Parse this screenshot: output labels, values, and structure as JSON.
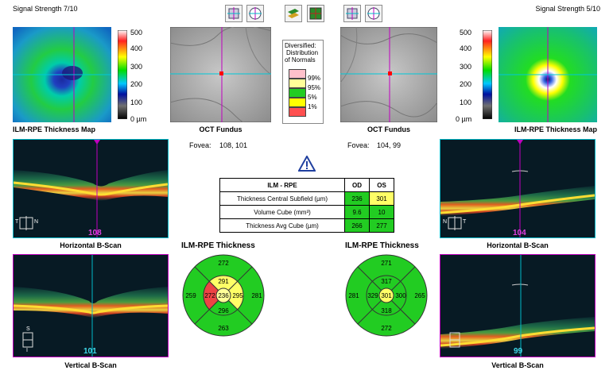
{
  "header": {
    "left_signal": "Signal Strength 7/10",
    "right_signal": "Signal Strength 5/10"
  },
  "toolbar": [
    {
      "name": "crosshair-left-icon"
    },
    {
      "name": "target-left-icon"
    },
    {
      "name": "layer-view-icon"
    },
    {
      "name": "grid-view-icon"
    },
    {
      "name": "crosshair-right-icon"
    },
    {
      "name": "target-right-icon"
    }
  ],
  "scale": {
    "labels": [
      "500",
      "400",
      "300",
      "200",
      "100",
      "0 µm"
    ]
  },
  "od": {
    "map_caption": "ILM-RPE Thickness Map",
    "fundus_caption": "OCT Fundus",
    "fovea_label": "Fovea:",
    "fovea_value": "108, 101",
    "hscan_caption": "Horizontal B-Scan",
    "hscan_index": "108",
    "vscan_caption": "Vertical B-Scan",
    "vscan_index": "101",
    "grid_title": "ILM-RPE Thickness",
    "grid": {
      "outer_top": "272",
      "outer_left": "259",
      "outer_right": "281",
      "outer_bottom": "263",
      "inner_top": "291",
      "inner_left": "272",
      "inner_right": "295",
      "inner_bottom": "296",
      "center": "236"
    },
    "orientation": {
      "t": "T",
      "n": "N",
      "s": "S",
      "i": "I"
    }
  },
  "os": {
    "map_caption": "ILM-RPE Thickness Map",
    "fundus_caption": "OCT Fundus",
    "fovea_label": "Fovea:",
    "fovea_value": "104, 99",
    "hscan_caption": "Horizontal B-Scan",
    "hscan_index": "104",
    "vscan_caption": "Vertical B-Scan",
    "vscan_index": "99",
    "grid_title": "ILM-RPE Thickness",
    "grid": {
      "outer_top": "271",
      "outer_left": "281",
      "outer_right": "265",
      "outer_bottom": "272",
      "inner_top": "317",
      "inner_left": "329",
      "inner_right": "300",
      "inner_bottom": "318",
      "center": "301"
    },
    "orientation": {
      "n": "N",
      "t": "T"
    }
  },
  "legend": {
    "title": [
      "Diversified:",
      "Distribution",
      "of Normals"
    ],
    "items": [
      "99%",
      "95%",
      "5%",
      "1%"
    ],
    "colors": [
      "#ffc0cb",
      "#ffff99",
      "#22cc22",
      "#ffff00",
      "#ff5050"
    ]
  },
  "results": {
    "header": [
      "ILM - RPE",
      "OD",
      "OS"
    ],
    "rows": [
      {
        "label": "Thickness Central Subfield (µm)",
        "od": "236",
        "os": "301",
        "od_color": "#22cc22",
        "os_color": "#ffff66"
      },
      {
        "label": "Volume Cube (mm³)",
        "od": "9.6",
        "os": "10",
        "od_color": "#22cc22",
        "os_color": "#22cc22"
      },
      {
        "label": "Thickness Avg Cube (µm)",
        "od": "266",
        "os": "277",
        "od_color": "#22cc22",
        "os_color": "#22cc22"
      }
    ]
  },
  "colors": {
    "green": "#22cc22",
    "yellow": "#ffff66",
    "red": "#ee4444",
    "magenta": "#c000c0",
    "cyan": "#00b8c8"
  }
}
